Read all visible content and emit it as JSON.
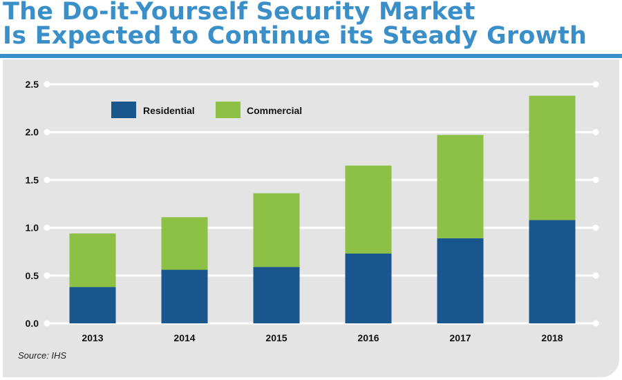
{
  "title": {
    "line1": "The Do-it-Yourself Security Market",
    "line2": "Is Expected to Continue its Steady Growth"
  },
  "source": "Source: IHS",
  "colors": {
    "title": "#3b8fc9",
    "residential": "#1a568e",
    "commercial": "#8cc145",
    "panel": "#e4e4e4",
    "grid": "#ffffff"
  },
  "chart_data": {
    "type": "bar",
    "stacked": true,
    "categories": [
      "2013",
      "2014",
      "2015",
      "2016",
      "2017",
      "2018"
    ],
    "series": [
      {
        "name": "Residential",
        "values": [
          0.38,
          0.56,
          0.59,
          0.73,
          0.89,
          1.08
        ]
      },
      {
        "name": "Commercial",
        "values": [
          0.56,
          0.55,
          0.77,
          0.92,
          1.08,
          1.3
        ]
      }
    ],
    "ylim": [
      0,
      2.5
    ],
    "yticks": [
      "0.0",
      "0.5",
      "1.0",
      "1.5",
      "2.0",
      "2.5"
    ],
    "grid": true,
    "legend": "top-left",
    "xlabel": "",
    "ylabel": ""
  }
}
